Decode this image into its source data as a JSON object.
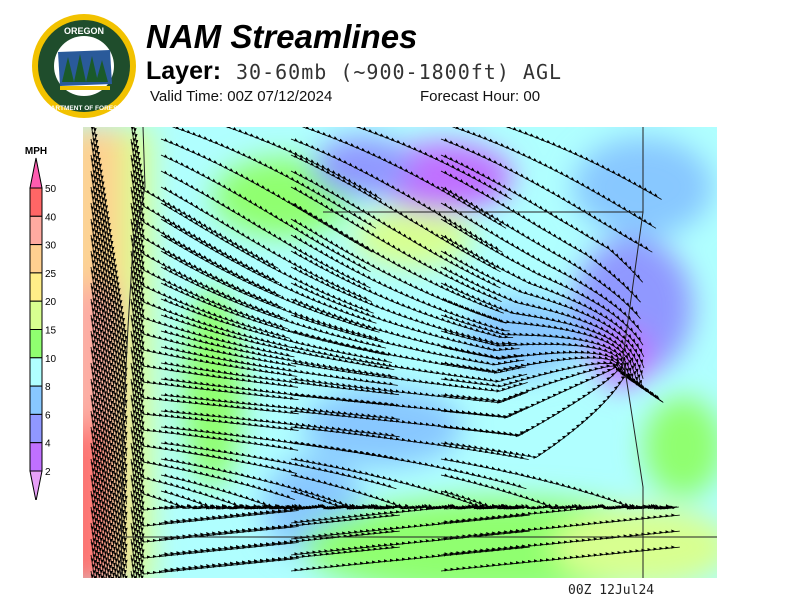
{
  "header": {
    "logo_text": [
      "OREGON",
      "DEPARTMENT OF FORESTRY"
    ],
    "title": "NAM Streamlines",
    "layer_label": "Layer:",
    "layer_value": "30-60mb (~900-1800ft) AGL",
    "valid_time": "Valid Time: 00Z 07/12/2024",
    "forecast_hour": "Forecast Hour: 00"
  },
  "legend": {
    "unit": "MPH",
    "labels": [
      "50",
      "40",
      "30",
      "25",
      "20",
      "15",
      "10",
      "8",
      "6",
      "4",
      "2"
    ],
    "colors": [
      "#ff6666",
      "#ffaaa0",
      "#ffd090",
      "#ffee88",
      "#d8ff90",
      "#90ff70",
      "#b0ffff",
      "#88c8ff",
      "#9098ff",
      "#c070ff"
    ],
    "above_color": "#ff5cb0",
    "below_color": "#e8a0f8"
  },
  "footer": {
    "timestamp": "00Z  12Jul24"
  }
}
